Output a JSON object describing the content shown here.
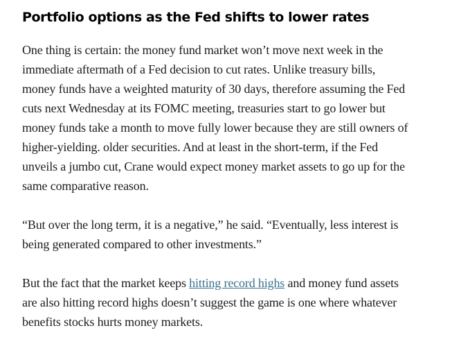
{
  "article": {
    "heading": "Portfolio options as the Fed shifts to lower rates",
    "paragraphs": [
      {
        "lines": [
          "One thing is certain: the money fund market won’t move next week in the",
          "immediate aftermath of a Fed decision to cut rates. Unlike treasury bills,",
          "money funds have a weighted maturity of 30 days, therefore assuming the Fed",
          "cuts next Wednesday at its FOMC meeting, treasuries start to go lower but",
          "money funds take a month to move fully lower because they are still owners of",
          "higher-yielding. older securities. And at least in the short-term, if the Fed",
          "unveils a jumbo cut, Crane would expect money market assets to go up for the",
          "same comparative reason."
        ]
      },
      {
        "lines": [
          "“But over the long term, it is a negative,” he said. “Eventually, less interest is",
          "being generated compared to other investments.”"
        ]
      },
      {
        "line1_before": "But the fact that the market keeps ",
        "link_text": "hitting record highs",
        "line1_after": " and money fund assets",
        "lines": [
          "are also hitting record highs doesn’t suggest the game is one where whatever",
          "benefits stocks hurts money markets."
        ]
      }
    ],
    "link_color": "#3a7390"
  }
}
